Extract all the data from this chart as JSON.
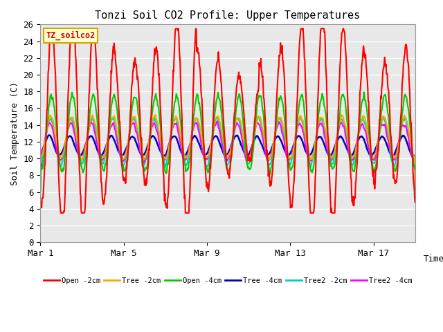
{
  "title": "Tonzi Soil CO2 Profile: Upper Temperatures",
  "xlabel": "Time",
  "ylabel": "Soil Temperature (C)",
  "ylim": [
    0,
    26
  ],
  "yticks": [
    0,
    2,
    4,
    6,
    8,
    10,
    12,
    14,
    16,
    18,
    20,
    22,
    24,
    26
  ],
  "xtick_labels": [
    "Mar 1",
    "Mar 5",
    "Mar 9",
    "Mar 13",
    "Mar 17"
  ],
  "xtick_positions": [
    0,
    4,
    8,
    12,
    16
  ],
  "dataset_label": "TZ_soilco2",
  "background_color": "#ffffff",
  "plot_bg_color": "#e8e8e8",
  "legend_entries": [
    "Open -2cm",
    "Tree -2cm",
    "Open -4cm",
    "Tree -4cm",
    "Tree2 -2cm",
    "Tree2 -4cm"
  ],
  "legend_colors": [
    "#ff0000",
    "#ffa500",
    "#00cc00",
    "#0000bb",
    "#00cccc",
    "#ff00ff"
  ],
  "series_colors": [
    "#ff0000",
    "#ffa500",
    "#00cc00",
    "#0000bb",
    "#00cccc",
    "#ff00ff"
  ],
  "n_days": 18,
  "n_points_per_day": 48,
  "xlim": [
    0,
    18
  ]
}
